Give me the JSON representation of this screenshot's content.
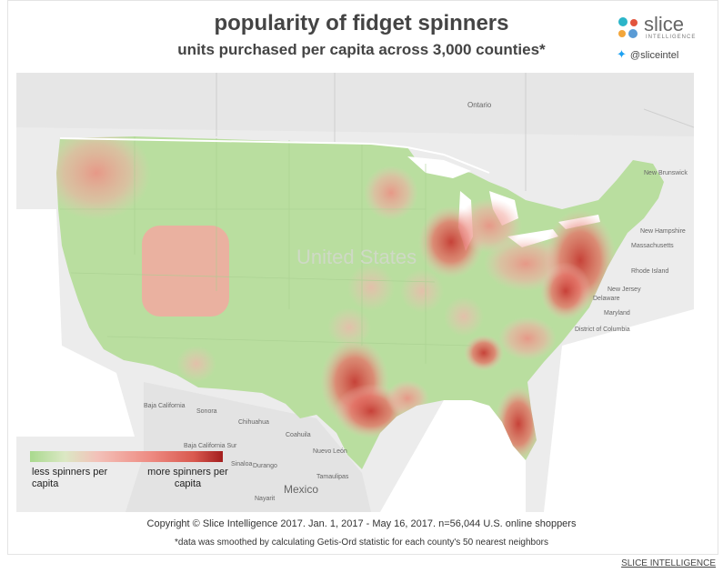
{
  "header": {
    "title": "popularity of fidget spinners",
    "subtitle": "units purchased per capita across 3,000 counties*"
  },
  "brand": {
    "name": "slice",
    "tagline": "INTELLIGENCE",
    "twitter": "@sliceintel",
    "logo_icon": "slice-logo-icon",
    "twitter_icon": "twitter-bird-icon",
    "colors": [
      "#2bb5c9",
      "#e2543d",
      "#f3a63b",
      "#5a9bd5"
    ]
  },
  "map": {
    "country_label": "United States",
    "places": {
      "ontario": "Ontario",
      "brunswick": "New Brunswick",
      "new_hampshire": "New Hampshire",
      "massachusetts": "Massachusetts",
      "rhode_island": "Rhode Island",
      "new_jersey": "New Jersey",
      "delaware": "Delaware",
      "maryland": "Maryland",
      "dc": "District of Columbia",
      "baja_california": "Baja California",
      "sonora": "Sonora",
      "chihuahua": "Chihuahua",
      "coahuila": "Coahuila",
      "nuevo_leon": "Nuevo León",
      "baja_sur": "Baja California Sur",
      "sinaloa": "Sinaloa",
      "durango": "Durango",
      "tamaulipas": "Tamaulipas",
      "nayarit": "Nayarit",
      "mexico": "Mexico"
    },
    "colors": {
      "low": "#a9d98e",
      "mid": "#f3c1b9",
      "high": "#a31d1d",
      "background": "#ececec"
    }
  },
  "legend": {
    "low_label": "less spinners per capita",
    "high_label": "more spinners per capita"
  },
  "footer": {
    "copyright": "Copyright © Slice Intelligence 2017. Jan. 1, 2017 - May 16, 2017. n=56,044 U.S. online shoppers",
    "note": "*data was smoothed by calculating Getis-Ord statistic for each county's 50 nearest neighbors"
  },
  "source_link": "SLICE INTELLIGENCE"
}
